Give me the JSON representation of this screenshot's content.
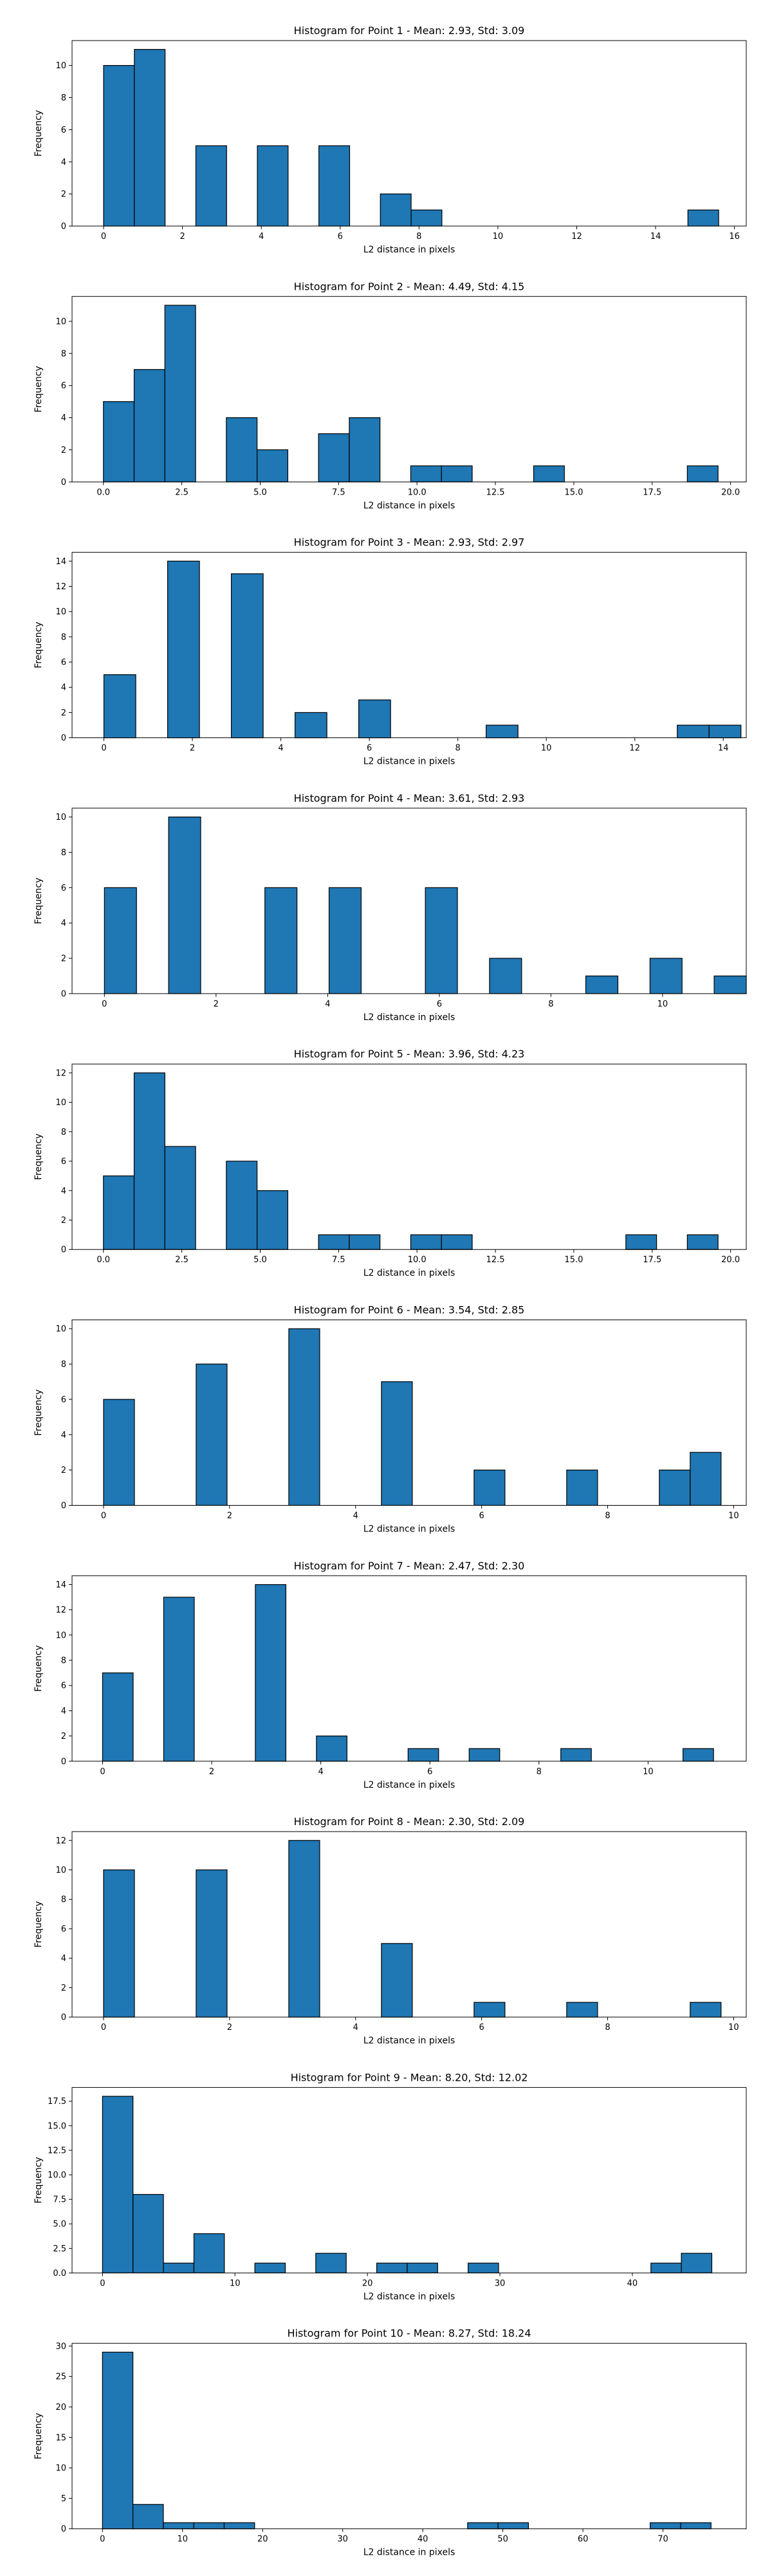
{
  "chart_data": [
    {
      "type": "bar",
      "title": "Histogram for Point 1 - Mean: 2.93, Std: 3.09",
      "xlabel": "L2 distance in pixels",
      "ylabel": "Frequency",
      "xlim": [
        -0.8,
        16.3
      ],
      "ylim": [
        0,
        11.55
      ],
      "xticks": [
        0,
        2,
        4,
        6,
        8,
        10,
        12,
        14,
        16
      ],
      "xtick_labels": [
        "0",
        "2",
        "4",
        "6",
        "8",
        "10",
        "12",
        "14",
        "16"
      ],
      "yticks": [
        0,
        2,
        4,
        6,
        8,
        10
      ],
      "ytick_labels": [
        "0",
        "2",
        "4",
        "6",
        "8",
        "10"
      ],
      "bins": [
        0,
        0.78,
        1.56,
        2.34,
        3.12,
        3.9,
        4.68,
        5.46,
        6.24,
        7.02,
        7.8,
        8.58,
        9.36,
        10.14,
        10.92,
        11.7,
        12.48,
        13.26,
        14.04,
        14.82,
        15.6
      ],
      "counts": [
        10,
        11,
        0,
        5,
        0,
        5,
        0,
        5,
        0,
        2,
        1,
        0,
        0,
        0,
        0,
        0,
        0,
        0,
        0,
        1
      ],
      "bar_color": "#1f77b4",
      "edge_color": "#000000",
      "grid": false,
      "legend": "none"
    },
    {
      "type": "bar",
      "title": "Histogram for Point 2 - Mean: 4.49, Std: 4.15",
      "xlabel": "L2 distance in pixels",
      "ylabel": "Frequency",
      "xlim": [
        -1.0,
        20.5
      ],
      "ylim": [
        0,
        11.55
      ],
      "xticks": [
        0,
        2.5,
        5,
        7.5,
        10,
        12.5,
        15,
        17.5,
        20
      ],
      "xtick_labels": [
        "0.0",
        "2.5",
        "5.0",
        "7.5",
        "10.0",
        "12.5",
        "15.0",
        "17.5",
        "20.0"
      ],
      "yticks": [
        0,
        2,
        4,
        6,
        8,
        10
      ],
      "ytick_labels": [
        "0",
        "2",
        "4",
        "6",
        "8",
        "10"
      ],
      "bins": [
        0,
        0.98,
        1.96,
        2.94,
        3.92,
        4.9,
        5.88,
        6.86,
        7.84,
        8.82,
        9.8,
        10.78,
        11.76,
        12.74,
        13.72,
        14.7,
        15.68,
        16.66,
        17.64,
        18.62,
        19.6
      ],
      "counts": [
        5,
        7,
        11,
        0,
        4,
        2,
        0,
        3,
        4,
        0,
        1,
        1,
        0,
        0,
        1,
        0,
        0,
        0,
        0,
        1
      ],
      "bar_color": "#1f77b4",
      "edge_color": "#000000",
      "grid": false,
      "legend": "none"
    },
    {
      "type": "bar",
      "title": "Histogram for Point 3 - Mean: 2.93, Std: 2.97",
      "xlabel": "L2 distance in pixels",
      "ylabel": "Frequency",
      "xlim": [
        -0.72,
        14.52
      ],
      "ylim": [
        0,
        14.7
      ],
      "xticks": [
        0,
        2,
        4,
        6,
        8,
        10,
        12,
        14
      ],
      "xtick_labels": [
        "0",
        "2",
        "4",
        "6",
        "8",
        "10",
        "12",
        "14"
      ],
      "yticks": [
        0,
        2,
        4,
        6,
        8,
        10,
        12,
        14
      ],
      "ytick_labels": [
        "0",
        "2",
        "4",
        "6",
        "8",
        "10",
        "12",
        "14"
      ],
      "bins": [
        0,
        0.72,
        1.44,
        2.16,
        2.88,
        3.6,
        4.32,
        5.04,
        5.76,
        6.48,
        7.2,
        7.92,
        8.64,
        9.36,
        10.08,
        10.8,
        11.52,
        12.24,
        12.96,
        13.68,
        14.4
      ],
      "counts": [
        5,
        0,
        14,
        0,
        13,
        0,
        2,
        0,
        3,
        0,
        0,
        0,
        1,
        0,
        0,
        0,
        0,
        0,
        1,
        1
      ],
      "bar_color": "#1f77b4",
      "edge_color": "#000000",
      "grid": false,
      "legend": "none"
    },
    {
      "type": "bar",
      "title": "Histogram for Point 4 - Mean: 3.61, Std: 2.93",
      "xlabel": "L2 distance in pixels",
      "ylabel": "Frequency",
      "xlim": [
        -0.58,
        11.5
      ],
      "ylim": [
        0,
        10.5
      ],
      "xticks": [
        0,
        2,
        4,
        6,
        8,
        10
      ],
      "xtick_labels": [
        "0",
        "2",
        "4",
        "6",
        "8",
        "10"
      ],
      "yticks": [
        0,
        2,
        4,
        6,
        8,
        10
      ],
      "ytick_labels": [
        "0",
        "2",
        "4",
        "6",
        "8",
        "10"
      ],
      "bins": [
        0,
        0.575,
        1.15,
        1.725,
        2.3,
        2.875,
        3.45,
        4.025,
        4.6,
        5.175,
        5.75,
        6.325,
        6.9,
        7.475,
        8.05,
        8.625,
        9.2,
        9.775,
        10.35,
        10.925,
        11.5
      ],
      "counts": [
        6,
        0,
        10,
        0,
        0,
        6,
        0,
        6,
        0,
        0,
        6,
        0,
        2,
        0,
        0,
        1,
        0,
        2,
        0,
        1
      ],
      "bar_color": "#1f77b4",
      "edge_color": "#000000",
      "grid": false,
      "legend": "none"
    },
    {
      "type": "bar",
      "title": "Histogram for Point 5 - Mean: 3.96, Std: 4.23",
      "xlabel": "L2 distance in pixels",
      "ylabel": "Frequency",
      "xlim": [
        -1.0,
        20.5
      ],
      "ylim": [
        0,
        12.6
      ],
      "xticks": [
        0,
        2.5,
        5,
        7.5,
        10,
        12.5,
        15,
        17.5,
        20
      ],
      "xtick_labels": [
        "0.0",
        "2.5",
        "5.0",
        "7.5",
        "10.0",
        "12.5",
        "15.0",
        "17.5",
        "20.0"
      ],
      "yticks": [
        0,
        2,
        4,
        6,
        8,
        10,
        12
      ],
      "ytick_labels": [
        "0",
        "2",
        "4",
        "6",
        "8",
        "10",
        "12"
      ],
      "bins": [
        0,
        0.98,
        1.96,
        2.94,
        3.92,
        4.9,
        5.88,
        6.86,
        7.84,
        8.82,
        9.8,
        10.78,
        11.76,
        12.74,
        13.72,
        14.7,
        15.68,
        16.66,
        17.64,
        18.62,
        19.6
      ],
      "counts": [
        5,
        12,
        7,
        0,
        6,
        4,
        0,
        1,
        1,
        0,
        1,
        1,
        0,
        0,
        0,
        0,
        0,
        1,
        0,
        1
      ],
      "bar_color": "#1f77b4",
      "edge_color": "#000000",
      "grid": false,
      "legend": "none"
    },
    {
      "type": "bar",
      "title": "Histogram for Point 6 - Mean: 3.54, Std: 2.85",
      "xlabel": "L2 distance in pixels",
      "ylabel": "Frequency",
      "xlim": [
        -0.5,
        10.2
      ],
      "ylim": [
        0,
        10.5
      ],
      "xticks": [
        0,
        2,
        4,
        6,
        8,
        10
      ],
      "xtick_labels": [
        "0",
        "2",
        "4",
        "6",
        "8",
        "10"
      ],
      "yticks": [
        0,
        2,
        4,
        6,
        8,
        10
      ],
      "ytick_labels": [
        "0",
        "2",
        "4",
        "6",
        "8",
        "10"
      ],
      "bins": [
        0,
        0.49,
        0.98,
        1.47,
        1.96,
        2.45,
        2.94,
        3.43,
        3.92,
        4.41,
        4.9,
        5.39,
        5.88,
        6.37,
        6.86,
        7.35,
        7.84,
        8.33,
        8.82,
        9.31,
        9.8
      ],
      "counts": [
        6,
        0,
        0,
        8,
        0,
        0,
        10,
        0,
        0,
        7,
        0,
        0,
        2,
        0,
        0,
        2,
        0,
        0,
        2,
        3
      ],
      "bar_color": "#1f77b4",
      "edge_color": "#000000",
      "grid": false,
      "legend": "none"
    },
    {
      "type": "bar",
      "title": "Histogram for Point 7 - Mean: 2.47, Std: 2.30",
      "xlabel": "L2 distance in pixels",
      "ylabel": "Frequency",
      "xlim": [
        -0.56,
        11.8
      ],
      "ylim": [
        0,
        14.7
      ],
      "xticks": [
        0,
        2,
        4,
        6,
        8,
        10
      ],
      "xtick_labels": [
        "0",
        "2",
        "4",
        "6",
        "8",
        "10"
      ],
      "yticks": [
        0,
        2,
        4,
        6,
        8,
        10,
        12,
        14
      ],
      "ytick_labels": [
        "0",
        "2",
        "4",
        "6",
        "8",
        "10",
        "12",
        "14"
      ],
      "bins": [
        0,
        0.56,
        1.12,
        1.68,
        2.24,
        2.8,
        3.36,
        3.92,
        4.48,
        5.04,
        5.6,
        6.16,
        6.72,
        7.28,
        7.84,
        8.4,
        8.96,
        9.52,
        10.08,
        10.64,
        11.2
      ],
      "counts": [
        7,
        0,
        13,
        0,
        0,
        14,
        0,
        2,
        0,
        0,
        1,
        0,
        1,
        0,
        0,
        1,
        0,
        0,
        0,
        1
      ],
      "bar_color": "#1f77b4",
      "edge_color": "#000000",
      "grid": false,
      "legend": "none"
    },
    {
      "type": "bar",
      "title": "Histogram for Point 8 - Mean: 2.30, Std: 2.09",
      "xlabel": "L2 distance in pixels",
      "ylabel": "Frequency",
      "xlim": [
        -0.5,
        10.2
      ],
      "ylim": [
        0,
        12.6
      ],
      "xticks": [
        0,
        2,
        4,
        6,
        8,
        10
      ],
      "xtick_labels": [
        "0",
        "2",
        "4",
        "6",
        "8",
        "10"
      ],
      "yticks": [
        0,
        2,
        4,
        6,
        8,
        10,
        12
      ],
      "ytick_labels": [
        "0",
        "2",
        "4",
        "6",
        "8",
        "10",
        "12"
      ],
      "bins": [
        0,
        0.49,
        0.98,
        1.47,
        1.96,
        2.45,
        2.94,
        3.43,
        3.92,
        4.41,
        4.9,
        5.39,
        5.88,
        6.37,
        6.86,
        7.35,
        7.84,
        8.33,
        8.82,
        9.31,
        9.8
      ],
      "counts": [
        10,
        0,
        0,
        10,
        0,
        0,
        12,
        0,
        0,
        5,
        0,
        0,
        1,
        0,
        0,
        1,
        0,
        0,
        0,
        1
      ],
      "bar_color": "#1f77b4",
      "edge_color": "#000000",
      "grid": false,
      "legend": "none"
    },
    {
      "type": "bar",
      "title": "Histogram for Point 9 - Mean: 8.20, Std: 12.02",
      "xlabel": "L2 distance in pixels",
      "ylabel": "Frequency",
      "xlim": [
        -2.3,
        48.6
      ],
      "ylim": [
        0,
        18.9
      ],
      "xticks": [
        0,
        10,
        20,
        30,
        40
      ],
      "xtick_labels": [
        "0",
        "10",
        "20",
        "30",
        "40"
      ],
      "yticks": [
        0,
        2.5,
        5,
        7.5,
        10,
        12.5,
        15,
        17.5
      ],
      "ytick_labels": [
        "0.0",
        "2.5",
        "5.0",
        "7.5",
        "10.0",
        "12.5",
        "15.0",
        "17.5"
      ],
      "bins": [
        0,
        2.3,
        4.6,
        6.9,
        9.2,
        11.5,
        13.8,
        16.1,
        18.4,
        20.7,
        23,
        25.3,
        27.6,
        29.9,
        32.2,
        34.5,
        36.8,
        39.1,
        41.4,
        43.7,
        46
      ],
      "counts": [
        18,
        8,
        1,
        4,
        0,
        1,
        0,
        2,
        0,
        1,
        1,
        0,
        1,
        0,
        0,
        0,
        0,
        0,
        1,
        2
      ],
      "bar_color": "#1f77b4",
      "edge_color": "#000000",
      "grid": false,
      "legend": "none"
    },
    {
      "type": "bar",
      "title": "Histogram for Point 10 - Mean: 8.27, Std: 18.24",
      "xlabel": "L2 distance in pixels",
      "ylabel": "Frequency",
      "xlim": [
        -3.8,
        80.4
      ],
      "ylim": [
        0,
        30.45
      ],
      "xticks": [
        0,
        10,
        20,
        30,
        40,
        50,
        60,
        70
      ],
      "xtick_labels": [
        "0",
        "10",
        "20",
        "30",
        "40",
        "50",
        "60",
        "70"
      ],
      "yticks": [
        0,
        5,
        10,
        15,
        20,
        25,
        30
      ],
      "ytick_labels": [
        "0",
        "5",
        "10",
        "15",
        "20",
        "25",
        "30"
      ],
      "bins": [
        0,
        3.8,
        7.6,
        11.4,
        15.2,
        19,
        22.8,
        26.6,
        30.4,
        34.2,
        38,
        41.8,
        45.6,
        49.4,
        53.2,
        57,
        60.8,
        64.6,
        68.4,
        72.2,
        76
      ],
      "counts": [
        29,
        4,
        1,
        1,
        1,
        0,
        0,
        0,
        0,
        0,
        0,
        0,
        1,
        1,
        0,
        0,
        0,
        0,
        1,
        1
      ],
      "bar_color": "#1f77b4",
      "edge_color": "#000000",
      "grid": false,
      "legend": "none"
    }
  ]
}
